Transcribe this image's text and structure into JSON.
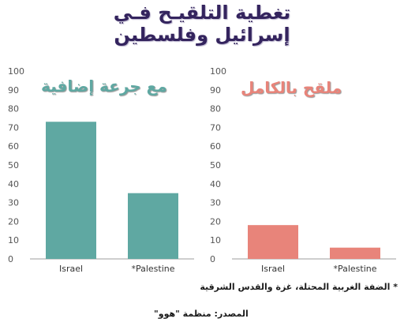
{
  "header": {
    "title_line1": "تغطية التلقيـح فـي",
    "title_line2": "إسرائيل وفلسطين"
  },
  "footnote": "* الضفة الغربية المحتلة، غزة والقدس الشرقية",
  "source": "المصدر: منظمة \"هوو\"",
  "colors": {
    "title": "#34245e",
    "teal": "#5fa8a2",
    "salmon": "#e8847a",
    "axis": "#bdbdbd",
    "tick": "#555555"
  },
  "chart_data": [
    {
      "type": "bar",
      "title": "مع جرعة إضافية",
      "categories": [
        "Israel",
        "*Palestine"
      ],
      "values": [
        73,
        35
      ],
      "ylim": [
        0,
        100
      ],
      "yticks": [
        0,
        10,
        20,
        30,
        40,
        50,
        60,
        70,
        80,
        90,
        100
      ],
      "color": "#5fa8a2",
      "grid": false
    },
    {
      "type": "bar",
      "title": "ملقح بالكامل",
      "categories": [
        "Israel",
        "*Palestine"
      ],
      "values": [
        18,
        6
      ],
      "ylim": [
        0,
        100
      ],
      "yticks": [
        0,
        10,
        20,
        30,
        40,
        50,
        60,
        70,
        80,
        90,
        100
      ],
      "color": "#e8847a",
      "grid": false
    }
  ]
}
